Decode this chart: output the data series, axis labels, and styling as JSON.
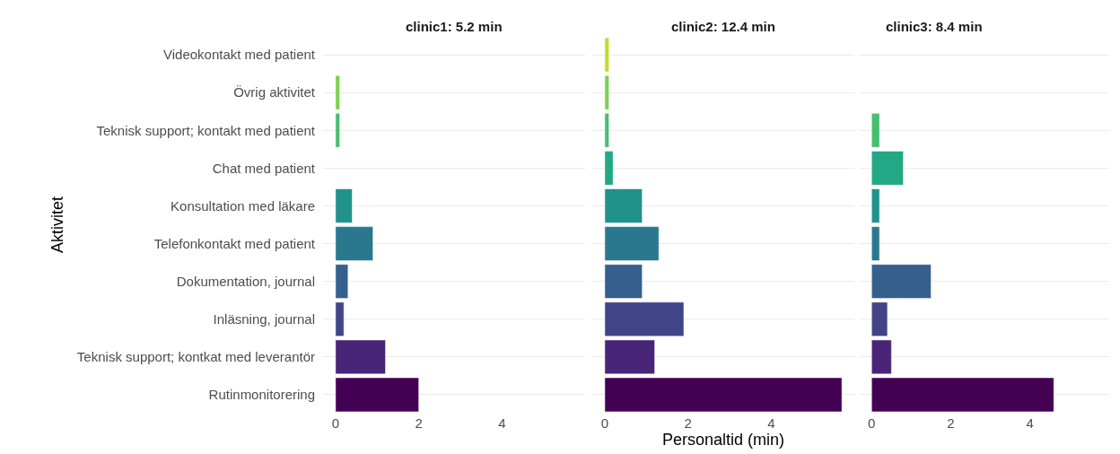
{
  "chart_data": [
    {
      "type": "bar",
      "orientation": "horizontal",
      "title": "clinic1: 5.2 min",
      "ylabel": "Aktivitet",
      "categories": [
        "Videokontakt med patient",
        "Övrig aktivitet",
        "Teknisk support; kontakt med patient",
        "Chat med patient",
        "Konsultation med läkare",
        "Telefonkontakt med patient",
        "Dokumentation, journal",
        "Inläsning, journal",
        "Teknisk support; kontkat med leverantör",
        "Rutinmonitorering"
      ],
      "values": [
        null,
        0.1,
        0.1,
        null,
        0.4,
        0.9,
        0.3,
        0.2,
        1.2,
        2.0
      ],
      "colors": [
        "#bddf26",
        "#7ad151",
        "#44bf70",
        "#22a884",
        "#21918c",
        "#2a788e",
        "#35608d",
        "#414487",
        "#482576",
        "#440154"
      ],
      "xlim": [
        -0.3,
        6.0
      ],
      "xticks": [
        0,
        2,
        4
      ],
      "grid": "y"
    },
    {
      "type": "bar",
      "orientation": "horizontal",
      "title": "clinic2: 12.4 min",
      "xlabel": "Personaltid (min)",
      "categories": [
        "Videokontakt med patient",
        "Övrig aktivitet",
        "Teknisk support; kontakt med patient",
        "Chat med patient",
        "Konsultation med läkare",
        "Telefonkontakt med patient",
        "Dokumentation, journal",
        "Inläsning, journal",
        "Teknisk support; kontkat med leverantör",
        "Rutinmonitorering"
      ],
      "values": [
        0.1,
        0.1,
        0.1,
        0.2,
        0.9,
        1.3,
        0.9,
        1.9,
        1.2,
        5.7
      ],
      "colors": [
        "#bddf26",
        "#7ad151",
        "#44bf70",
        "#22a884",
        "#21918c",
        "#2a788e",
        "#35608d",
        "#414487",
        "#482576",
        "#440154"
      ],
      "xlim": [
        -0.3,
        6.0
      ],
      "xticks": [
        0,
        2,
        4
      ],
      "grid": "y",
      "tick_labels": "x"
    },
    {
      "type": "bar",
      "orientation": "horizontal",
      "title": "clinic3: 8.4 min",
      "categories": [
        "Videokontakt med patient",
        "Övrig aktivitet",
        "Teknisk support; kontakt med patient",
        "Chat med patient",
        "Konsultation med läkare",
        "Telefonkontakt med patient",
        "Dokumentation, journal",
        "Inläsning, journal",
        "Teknisk support; kontkat med leverantör",
        "Rutinmonitorering"
      ],
      "values": [
        null,
        null,
        0.2,
        0.8,
        0.2,
        0.2,
        1.5,
        0.4,
        0.5,
        4.6
      ],
      "colors": [
        "#bddf26",
        "#7ad151",
        "#44bf70",
        "#22a884",
        "#21918c",
        "#2a788e",
        "#35608d",
        "#414487",
        "#482576",
        "#440154"
      ],
      "xlim": [
        -0.3,
        6.0
      ],
      "xticks": [
        0,
        2,
        4
      ],
      "grid": "y",
      "tick_labels": "x"
    }
  ]
}
